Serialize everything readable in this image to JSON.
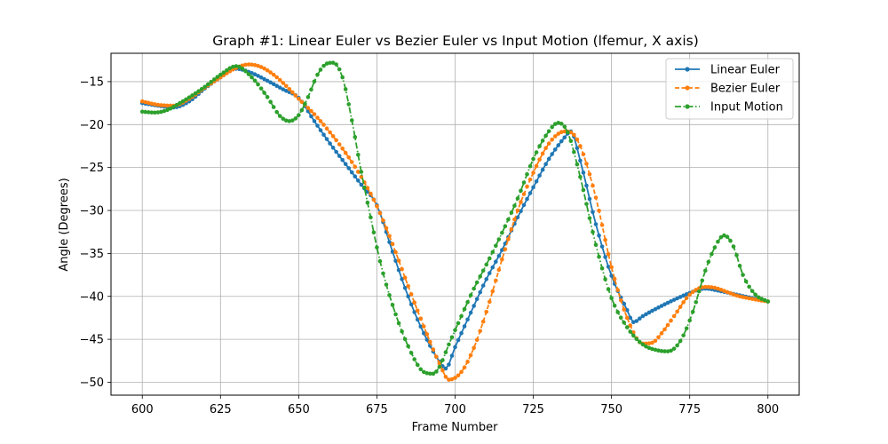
{
  "chart_data": {
    "type": "line",
    "title": "Graph #1: Linear Euler vs Bezier Euler vs Input Motion (lfemur, X axis)",
    "xlabel": "Frame Number",
    "ylabel": "Angle (Degrees)",
    "xlim": [
      590,
      810
    ],
    "ylim": [
      -51.5,
      -11.7
    ],
    "xticks": [
      600,
      625,
      650,
      675,
      700,
      725,
      750,
      775,
      800
    ],
    "yticks": [
      -15,
      -20,
      -25,
      -30,
      -35,
      -40,
      -45,
      -50
    ],
    "grid": true,
    "legend_position": "top-right",
    "series": [
      {
        "name": "Linear Euler",
        "color": "#1f77b4",
        "style": "solid",
        "marker": "circle",
        "x": [
          600,
          605,
          610,
          615,
          620,
          625,
          630,
          635,
          640,
          645,
          650,
          655,
          660,
          665,
          670,
          675,
          680,
          685,
          690,
          695,
          697,
          700,
          705,
          710,
          715,
          720,
          725,
          730,
          735,
          737,
          740,
          745,
          750,
          755,
          757,
          760,
          765,
          770,
          775,
          778,
          780,
          785,
          790,
          795,
          800
        ],
        "y": [
          -17.5,
          -17.8,
          -18.0,
          -17.3,
          -15.8,
          -14.5,
          -13.5,
          -14.0,
          -14.9,
          -15.9,
          -16.9,
          -19.6,
          -22.2,
          -24.6,
          -27.0,
          -29.4,
          -34.8,
          -40.0,
          -44.3,
          -47.6,
          -48.4,
          -45.9,
          -41.9,
          -38.0,
          -34.6,
          -30.8,
          -27.3,
          -24.0,
          -21.5,
          -20.8,
          -24.2,
          -31.6,
          -37.6,
          -41.6,
          -43.0,
          -42.3,
          -41.3,
          -40.4,
          -39.6,
          -39.2,
          -39.1,
          -39.4,
          -39.8,
          -40.2,
          -40.6
        ]
      },
      {
        "name": "Bezier Euler",
        "color": "#ff7f0e",
        "style": "dashed",
        "marker": "circle",
        "x": [
          600,
          605,
          610,
          615,
          620,
          625,
          630,
          634,
          638,
          642,
          646,
          650,
          655,
          660,
          665,
          670,
          675,
          680,
          685,
          690,
          695,
          698,
          702,
          706,
          710,
          715,
          720,
          725,
          730,
          735,
          737,
          740,
          745,
          750,
          755,
          760,
          763,
          766,
          770,
          775,
          780,
          783,
          787,
          790,
          795,
          800
        ],
        "y": [
          -17.3,
          -17.7,
          -17.8,
          -17.0,
          -15.7,
          -14.5,
          -13.4,
          -13.0,
          -13.3,
          -14.2,
          -15.5,
          -17.0,
          -18.8,
          -20.9,
          -23.3,
          -26.1,
          -29.5,
          -33.9,
          -38.8,
          -43.5,
          -47.8,
          -49.7,
          -48.8,
          -46.0,
          -41.8,
          -35.7,
          -30.0,
          -25.6,
          -22.2,
          -20.8,
          -20.9,
          -22.5,
          -28.5,
          -36.6,
          -42.5,
          -45.5,
          -45.4,
          -44.3,
          -42.3,
          -39.8,
          -38.9,
          -39.0,
          -39.5,
          -39.9,
          -40.3,
          -40.6
        ]
      },
      {
        "name": "Input Motion",
        "color": "#2ca02c",
        "style": "dashdot",
        "marker": "circle",
        "x": [
          600,
          604,
          608,
          612,
          616,
          620,
          625,
          630,
          635,
          640,
          644,
          647,
          650,
          653,
          656,
          659,
          661,
          664,
          667,
          670,
          673,
          676,
          680,
          685,
          690,
          693,
          695,
          698,
          702,
          706,
          710,
          715,
          720,
          725,
          729,
          733,
          736,
          740,
          745,
          750,
          755,
          760,
          765,
          768,
          772,
          776,
          780,
          783,
          786,
          789,
          792,
          796,
          800
        ],
        "y": [
          -18.5,
          -18.6,
          -18.3,
          -17.5,
          -16.6,
          -15.6,
          -14.2,
          -13.2,
          -14.5,
          -16.8,
          -19.0,
          -19.6,
          -18.9,
          -16.8,
          -14.2,
          -12.9,
          -12.8,
          -14.5,
          -19.5,
          -25.5,
          -30.8,
          -35.9,
          -41.0,
          -45.8,
          -48.8,
          -49.0,
          -48.2,
          -45.6,
          -42.3,
          -39.1,
          -36.3,
          -32.6,
          -28.6,
          -24.0,
          -21.3,
          -19.8,
          -20.9,
          -26.1,
          -34.0,
          -40.2,
          -43.6,
          -45.6,
          -46.3,
          -46.4,
          -45.2,
          -41.8,
          -37.0,
          -34.3,
          -32.9,
          -34.2,
          -37.5,
          -39.8,
          -40.6
        ]
      }
    ]
  }
}
